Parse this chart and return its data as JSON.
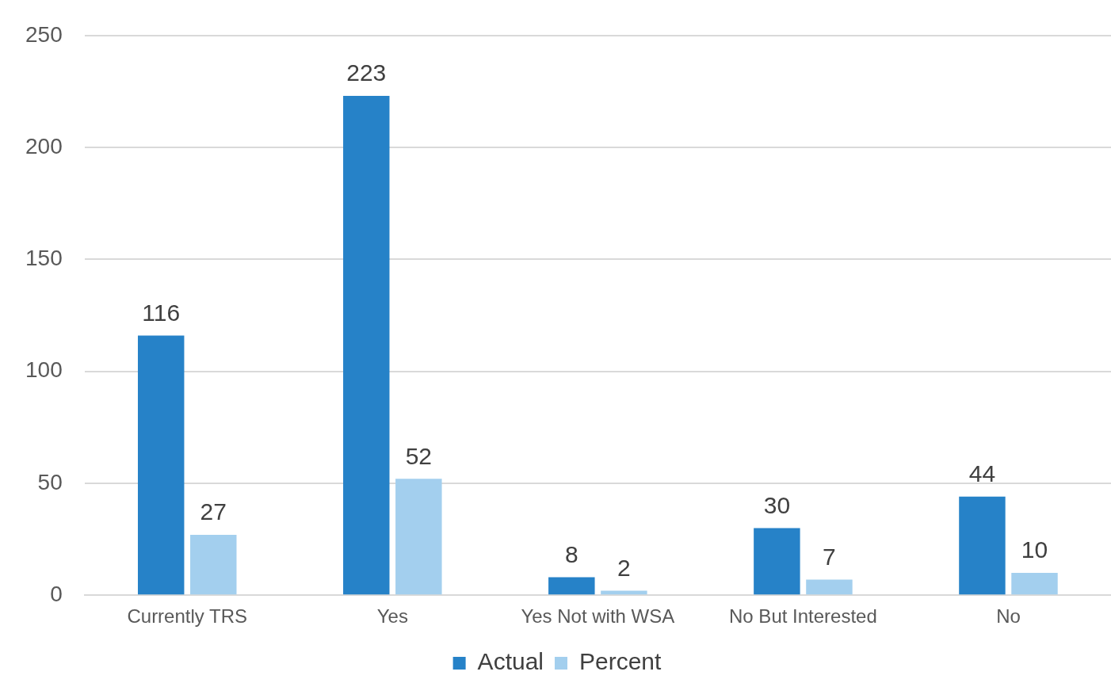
{
  "chart_data": {
    "type": "bar",
    "categories": [
      "Currently TRS",
      "Yes",
      "Yes Not with WSA",
      "No But Interested",
      "No"
    ],
    "series": [
      {
        "name": "Actual",
        "color": "#2682c8",
        "values": [
          116,
          223,
          8,
          30,
          44
        ]
      },
      {
        "name": "Percent",
        "color": "#a3cfee",
        "values": [
          27,
          52,
          2,
          7,
          10
        ]
      }
    ],
    "ylim": [
      0,
      250
    ],
    "yticks": [
      0,
      50,
      100,
      150,
      200,
      250
    ],
    "grid": "y",
    "legend": "bottom",
    "data_labels": true
  }
}
